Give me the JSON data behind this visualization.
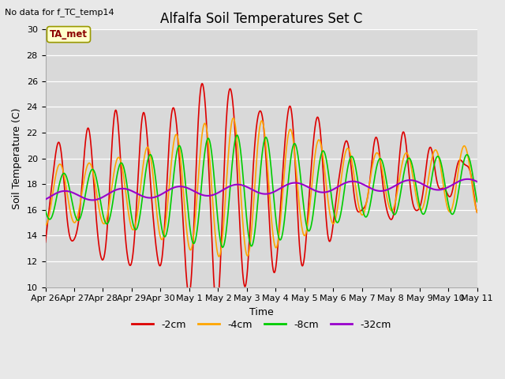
{
  "title": "Alfalfa Soil Temperatures Set C",
  "xlabel": "Time",
  "ylabel": "Soil Temperature (C)",
  "ylim": [
    10,
    30
  ],
  "annotation_text": "No data for f_TC_temp14",
  "ta_met_label": "TA_met",
  "fig_bg_color": "#e8e8e8",
  "plot_bg_color": "#d9d9d9",
  "series": {
    "-2cm": {
      "color": "#dd0000",
      "linewidth": 1.2
    },
    "-4cm": {
      "color": "#ffa500",
      "linewidth": 1.2
    },
    "-8cm": {
      "color": "#00cc00",
      "linewidth": 1.2
    },
    "-32cm": {
      "color": "#9900cc",
      "linewidth": 1.5
    }
  },
  "legend": {
    "labels": [
      "-2cm",
      "-4cm",
      "-8cm",
      "-32cm"
    ],
    "colors": [
      "#dd0000",
      "#ffa500",
      "#00cc00",
      "#9900cc"
    ]
  },
  "x_tick_labels": [
    "Apr 26",
    "Apr 27",
    "Apr 28",
    "Apr 29",
    "Apr 30",
    "May 1",
    "May 2",
    "May 3",
    "May 4",
    "May 5",
    "May 6",
    "May 7",
    "May 8",
    "May 9",
    "May 10",
    "May 11"
  ],
  "title_fontsize": 12,
  "axis_label_fontsize": 9,
  "tick_fontsize": 8
}
